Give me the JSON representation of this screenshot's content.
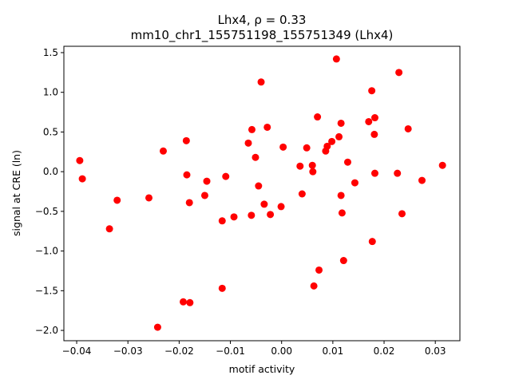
{
  "chart_data": {
    "type": "scatter",
    "title_line1": "Lhx4, ρ = 0.33",
    "title_line2": "mm10_chr1_155751198_155751349 (Lhx4)",
    "xlabel": "motif activity",
    "ylabel": "signal at CRE (ln)",
    "xlim": [
      -0.0425,
      0.0348
    ],
    "ylim": [
      -2.13,
      1.58
    ],
    "xticks": [
      -0.04,
      -0.03,
      -0.02,
      -0.01,
      0.0,
      0.01,
      0.02,
      0.03
    ],
    "xtick_labels": [
      "−0.04",
      "−0.03",
      "−0.02",
      "−0.01",
      "0.00",
      "0.01",
      "0.02",
      "0.03"
    ],
    "yticks": [
      -2.0,
      -1.5,
      -1.0,
      -0.5,
      0.0,
      0.5,
      1.0,
      1.5
    ],
    "ytick_labels": [
      "−2.0",
      "−1.5",
      "−1.0",
      "−0.5",
      "0.0",
      "0.5",
      "1.0",
      "1.5"
    ],
    "grid": false,
    "marker_color": "#ff0000",
    "points": [
      {
        "x": -0.0394,
        "y": 0.14
      },
      {
        "x": -0.0389,
        "y": -0.09
      },
      {
        "x": -0.0336,
        "y": -0.72
      },
      {
        "x": -0.0321,
        "y": -0.36
      },
      {
        "x": -0.0259,
        "y": -0.33
      },
      {
        "x": -0.0242,
        "y": -1.96
      },
      {
        "x": -0.0231,
        "y": 0.26
      },
      {
        "x": -0.0192,
        "y": -1.64
      },
      {
        "x": -0.0186,
        "y": 0.39
      },
      {
        "x": -0.0185,
        "y": -0.04
      },
      {
        "x": -0.0179,
        "y": -1.65
      },
      {
        "x": -0.018,
        "y": -0.39
      },
      {
        "x": -0.015,
        "y": -0.3
      },
      {
        "x": -0.0146,
        "y": -0.12
      },
      {
        "x": -0.0116,
        "y": -1.47
      },
      {
        "x": -0.0116,
        "y": -0.62
      },
      {
        "x": -0.0109,
        "y": -0.06
      },
      {
        "x": -0.0093,
        "y": -0.57
      },
      {
        "x": -0.0065,
        "y": 0.36
      },
      {
        "x": -0.0058,
        "y": 0.53
      },
      {
        "x": -0.0059,
        "y": -0.55
      },
      {
        "x": -0.0051,
        "y": 0.18
      },
      {
        "x": -0.0045,
        "y": -0.18
      },
      {
        "x": -0.004,
        "y": 1.13
      },
      {
        "x": -0.0034,
        "y": -0.41
      },
      {
        "x": -0.0028,
        "y": 0.56
      },
      {
        "x": -0.0022,
        "y": -0.54
      },
      {
        "x": -0.0001,
        "y": -0.44
      },
      {
        "x": 0.0003,
        "y": 0.31
      },
      {
        "x": 0.0036,
        "y": 0.07
      },
      {
        "x": 0.004,
        "y": -0.28
      },
      {
        "x": 0.0049,
        "y": 0.3
      },
      {
        "x": 0.006,
        "y": 0.08
      },
      {
        "x": 0.0061,
        "y": 0.0
      },
      {
        "x": 0.0063,
        "y": -1.44
      },
      {
        "x": 0.007,
        "y": 0.69
      },
      {
        "x": 0.0073,
        "y": -1.24
      },
      {
        "x": 0.0086,
        "y": 0.26
      },
      {
        "x": 0.0089,
        "y": 0.32
      },
      {
        "x": 0.0098,
        "y": 0.38
      },
      {
        "x": 0.0107,
        "y": 1.42
      },
      {
        "x": 0.0112,
        "y": 0.44
      },
      {
        "x": 0.0116,
        "y": 0.61
      },
      {
        "x": 0.0116,
        "y": -0.3
      },
      {
        "x": 0.0118,
        "y": -0.52
      },
      {
        "x": 0.0121,
        "y": -1.12
      },
      {
        "x": 0.0129,
        "y": 0.12
      },
      {
        "x": 0.0143,
        "y": -0.14
      },
      {
        "x": 0.017,
        "y": 0.63
      },
      {
        "x": 0.0176,
        "y": 1.02
      },
      {
        "x": 0.0177,
        "y": -0.88
      },
      {
        "x": 0.0181,
        "y": 0.47
      },
      {
        "x": 0.0182,
        "y": 0.68
      },
      {
        "x": 0.0182,
        "y": -0.02
      },
      {
        "x": 0.0226,
        "y": -0.02
      },
      {
        "x": 0.0229,
        "y": 1.25
      },
      {
        "x": 0.0235,
        "y": -0.53
      },
      {
        "x": 0.0247,
        "y": 0.54
      },
      {
        "x": 0.0274,
        "y": -0.11
      },
      {
        "x": 0.0314,
        "y": 0.08
      }
    ]
  }
}
